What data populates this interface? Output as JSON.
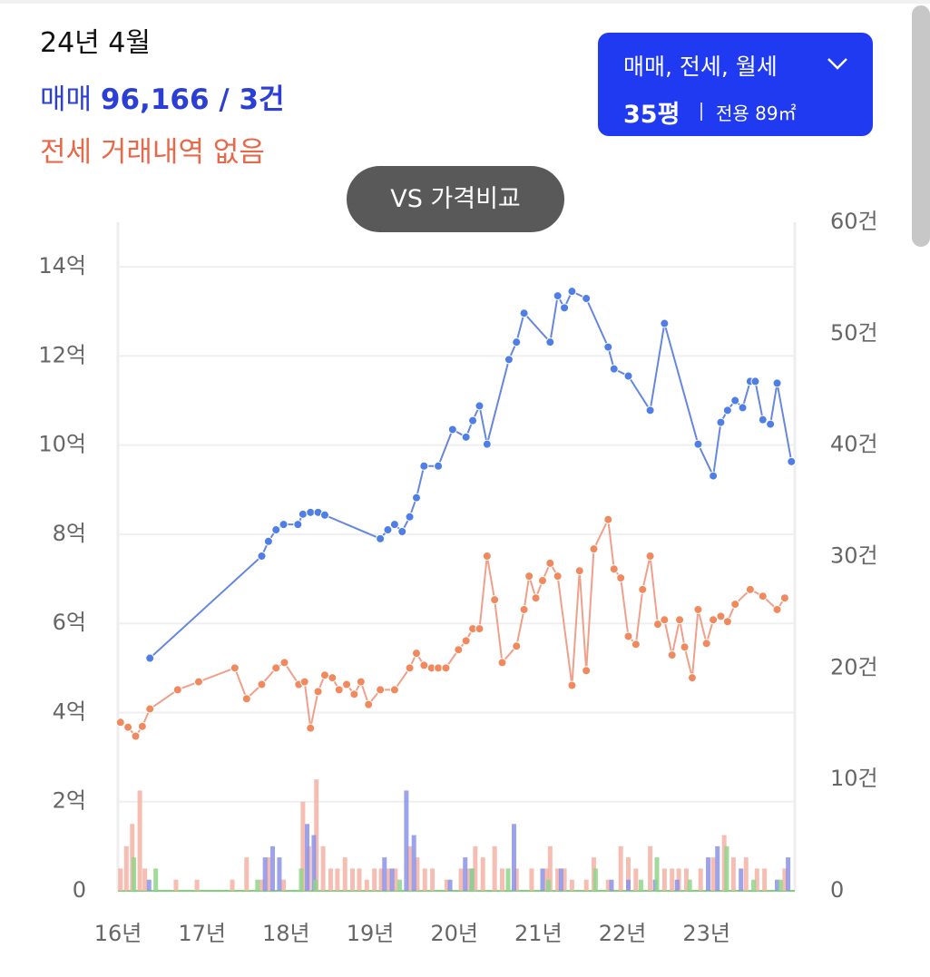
{
  "header": {
    "period": "24년 4월",
    "sale": {
      "label": "매매",
      "value": "96,166 / 3건"
    },
    "jeonse": "전세 거래내역 없음",
    "filter": {
      "types": "매매, 전세, 월세",
      "size": "35평",
      "area": "전용 89㎡"
    },
    "compare": "VS 가격비교"
  },
  "chart_data": {
    "type": "line",
    "grid": true,
    "xlim": [
      2016,
      2024.05
    ],
    "xticks": [
      {
        "value": 2016,
        "label": "16년"
      },
      {
        "value": 2017,
        "label": "17년"
      },
      {
        "value": 2018,
        "label": "18년"
      },
      {
        "value": 2019,
        "label": "19년"
      },
      {
        "value": 2020,
        "label": "20년"
      },
      {
        "value": 2021,
        "label": "21년"
      },
      {
        "value": 2022,
        "label": "22년"
      },
      {
        "value": 2023,
        "label": "23년"
      }
    ],
    "ylim": [
      0,
      15
    ],
    "yticks": [
      0,
      {
        "value": 2,
        "label": "2억"
      },
      {
        "value": 4,
        "label": "4억"
      },
      {
        "value": 6,
        "label": "6억"
      },
      {
        "value": 8,
        "label": "8억"
      },
      {
        "value": 10,
        "label": "10억"
      },
      {
        "value": 12,
        "label": "12억"
      },
      {
        "value": 14,
        "label": "14억"
      }
    ],
    "y2lim": [
      0,
      60
    ],
    "y2ticks": [
      0,
      {
        "value": 10,
        "label": "10건"
      },
      {
        "value": 20,
        "label": "20건"
      },
      {
        "value": 30,
        "label": "30건"
      },
      {
        "value": 40,
        "label": "40건"
      },
      {
        "value": 50,
        "label": "50건"
      },
      {
        "value": 60,
        "label": "60건"
      }
    ],
    "series": [
      {
        "type": "bar",
        "axis": "y2",
        "color": "#f4b1a4",
        "x": [
          2016.03,
          2016.1,
          2016.17,
          2016.26,
          2016.32,
          2016.69,
          2016.94,
          2017.36,
          2017.53,
          2017.71,
          2017.79,
          2017.97,
          2018.2,
          2018.27,
          2018.36,
          2018.44,
          2018.53,
          2018.61,
          2018.7,
          2018.79,
          2018.87,
          2018.96,
          2019.05,
          2019.13,
          2019.22,
          2019.3,
          2019.47,
          2019.56,
          2019.65,
          2019.74,
          2019.91,
          2020.08,
          2020.17,
          2020.25,
          2020.34,
          2020.48,
          2020.57,
          2020.74,
          2020.92,
          2021.1,
          2021.14,
          2021.23,
          2021.31,
          2021.4,
          2021.57,
          2021.66,
          2021.83,
          2021.98,
          2022.07,
          2022.16,
          2022.33,
          2022.5,
          2022.59,
          2022.67,
          2022.76,
          2022.93,
          2023.08,
          2023.21,
          2023.32,
          2023.47,
          2023.6,
          2023.69,
          2023.93
        ],
        "values": [
          2,
          4,
          6,
          9,
          2,
          1,
          1,
          1,
          3,
          1,
          3,
          1,
          8,
          4,
          10,
          4,
          2,
          2,
          3,
          2,
          2,
          1,
          2,
          2,
          2,
          2,
          4,
          3,
          2,
          2,
          1,
          2,
          2,
          4,
          3,
          4,
          2,
          2,
          2,
          2,
          4,
          2,
          2,
          1,
          1,
          3,
          1,
          4,
          3,
          2,
          4,
          2,
          2,
          2,
          2,
          2,
          3,
          5,
          3,
          3,
          2,
          2,
          2
        ]
      },
      {
        "type": "bar",
        "axis": "y2",
        "color": "#8b93e8",
        "x": [
          2016.37,
          2017.75,
          2017.84,
          2017.92,
          2018.25,
          2018.33,
          2019.17,
          2019.26,
          2019.43,
          2019.52,
          2019.95,
          2020.13,
          2020.21,
          2020.71,
          2021.05,
          2021.27,
          2021.87,
          2022.07,
          2022.39,
          2022.65,
          2023.02,
          2023.13,
          2023.41,
          2023.84,
          2023.97
        ],
        "values": [
          1,
          3,
          4,
          3,
          6,
          5,
          3,
          2,
          9,
          5,
          1,
          3,
          2,
          6,
          2,
          2,
          1,
          1,
          1,
          1,
          3,
          4,
          2,
          1,
          3
        ]
      },
      {
        "type": "bar",
        "axis": "y2",
        "color": "#8fd58a",
        "x": [
          2016.19,
          2016.45,
          2017.66,
          2018.18,
          2018.35,
          2019.35,
          2020.21,
          2020.64,
          2021.12,
          2021.68,
          2022.22,
          2022.41,
          2022.8,
          2023.24,
          2023.56,
          2023.88
        ],
        "values": [
          3,
          2,
          1,
          2,
          1,
          1,
          2,
          2,
          1,
          2,
          1,
          3,
          1,
          4,
          1,
          1
        ]
      },
      {
        "color": "#f0a08a",
        "dot": "#f08a5e",
        "x": [
          2016.03,
          2016.12,
          2016.21,
          2016.29,
          2016.38,
          2016.71,
          2016.96,
          2017.39,
          2017.53,
          2017.71,
          2017.88,
          2017.98,
          2018.15,
          2018.22,
          2018.29,
          2018.38,
          2018.46,
          2018.55,
          2018.63,
          2018.72,
          2018.81,
          2018.89,
          2018.98,
          2019.12,
          2019.29,
          2019.47,
          2019.55,
          2019.64,
          2019.73,
          2019.81,
          2019.9,
          2020.05,
          2020.14,
          2020.22,
          2020.3,
          2020.39,
          2020.48,
          2020.57,
          2020.74,
          2020.83,
          2020.89,
          2020.97,
          2021.05,
          2021.14,
          2021.23,
          2021.4,
          2021.49,
          2021.57,
          2021.66,
          2021.83,
          2021.9,
          2021.98,
          2022.07,
          2022.16,
          2022.24,
          2022.33,
          2022.42,
          2022.5,
          2022.59,
          2022.68,
          2022.74,
          2022.83,
          2022.9,
          2023.0,
          2023.08,
          2023.17,
          2023.25,
          2023.34,
          2023.52,
          2023.67,
          2023.84,
          2023.93
        ],
        "values": [
          3.78,
          3.67,
          3.47,
          3.69,
          4.08,
          4.51,
          4.69,
          5.0,
          4.31,
          4.63,
          5.0,
          5.12,
          4.63,
          4.69,
          3.65,
          4.47,
          4.84,
          4.78,
          4.51,
          4.63,
          4.41,
          4.69,
          4.18,
          4.51,
          4.51,
          5.0,
          5.33,
          5.06,
          5.0,
          5.0,
          5.0,
          5.41,
          5.61,
          5.88,
          5.88,
          7.51,
          6.53,
          5.12,
          5.49,
          6.31,
          7.06,
          6.57,
          6.96,
          7.35,
          7.06,
          4.61,
          7.18,
          4.94,
          7.67,
          8.33,
          7.22,
          7.02,
          5.71,
          5.53,
          6.76,
          7.51,
          5.98,
          6.08,
          5.29,
          6.08,
          5.47,
          4.78,
          6.31,
          5.55,
          6.08,
          6.16,
          6.04,
          6.43,
          6.76,
          6.61,
          6.31,
          6.57
        ]
      },
      {
        "color": "#6687e0",
        "dot": "#4f7ee6",
        "x": [
          2016.38,
          2017.71,
          2017.79,
          2017.88,
          2017.97,
          2018.14,
          2018.2,
          2018.29,
          2018.38,
          2018.46,
          2019.12,
          2019.21,
          2019.29,
          2019.38,
          2019.47,
          2019.55,
          2019.64,
          2019.81,
          2019.98,
          2020.14,
          2020.22,
          2020.3,
          2020.39,
          2020.65,
          2020.74,
          2020.83,
          2021.14,
          2021.23,
          2021.31,
          2021.4,
          2021.57,
          2021.83,
          2021.9,
          2022.07,
          2022.33,
          2022.5,
          2022.9,
          2023.08,
          2023.17,
          2023.25,
          2023.34,
          2023.43,
          2023.52,
          2023.58,
          2023.67,
          2023.76,
          2023.84,
          2024.01
        ],
        "values": [
          5.22,
          7.51,
          7.84,
          8.1,
          8.22,
          8.22,
          8.45,
          8.49,
          8.49,
          8.43,
          7.9,
          8.1,
          8.22,
          8.06,
          8.39,
          8.82,
          9.53,
          9.53,
          10.35,
          10.18,
          10.55,
          10.88,
          10.02,
          11.92,
          12.31,
          12.96,
          12.31,
          13.35,
          13.08,
          13.45,
          13.29,
          12.2,
          11.71,
          11.55,
          10.78,
          12.73,
          10.02,
          9.31,
          10.51,
          10.78,
          11.0,
          10.84,
          11.43,
          11.43,
          10.57,
          10.47,
          11.39,
          9.63
        ]
      }
    ]
  }
}
